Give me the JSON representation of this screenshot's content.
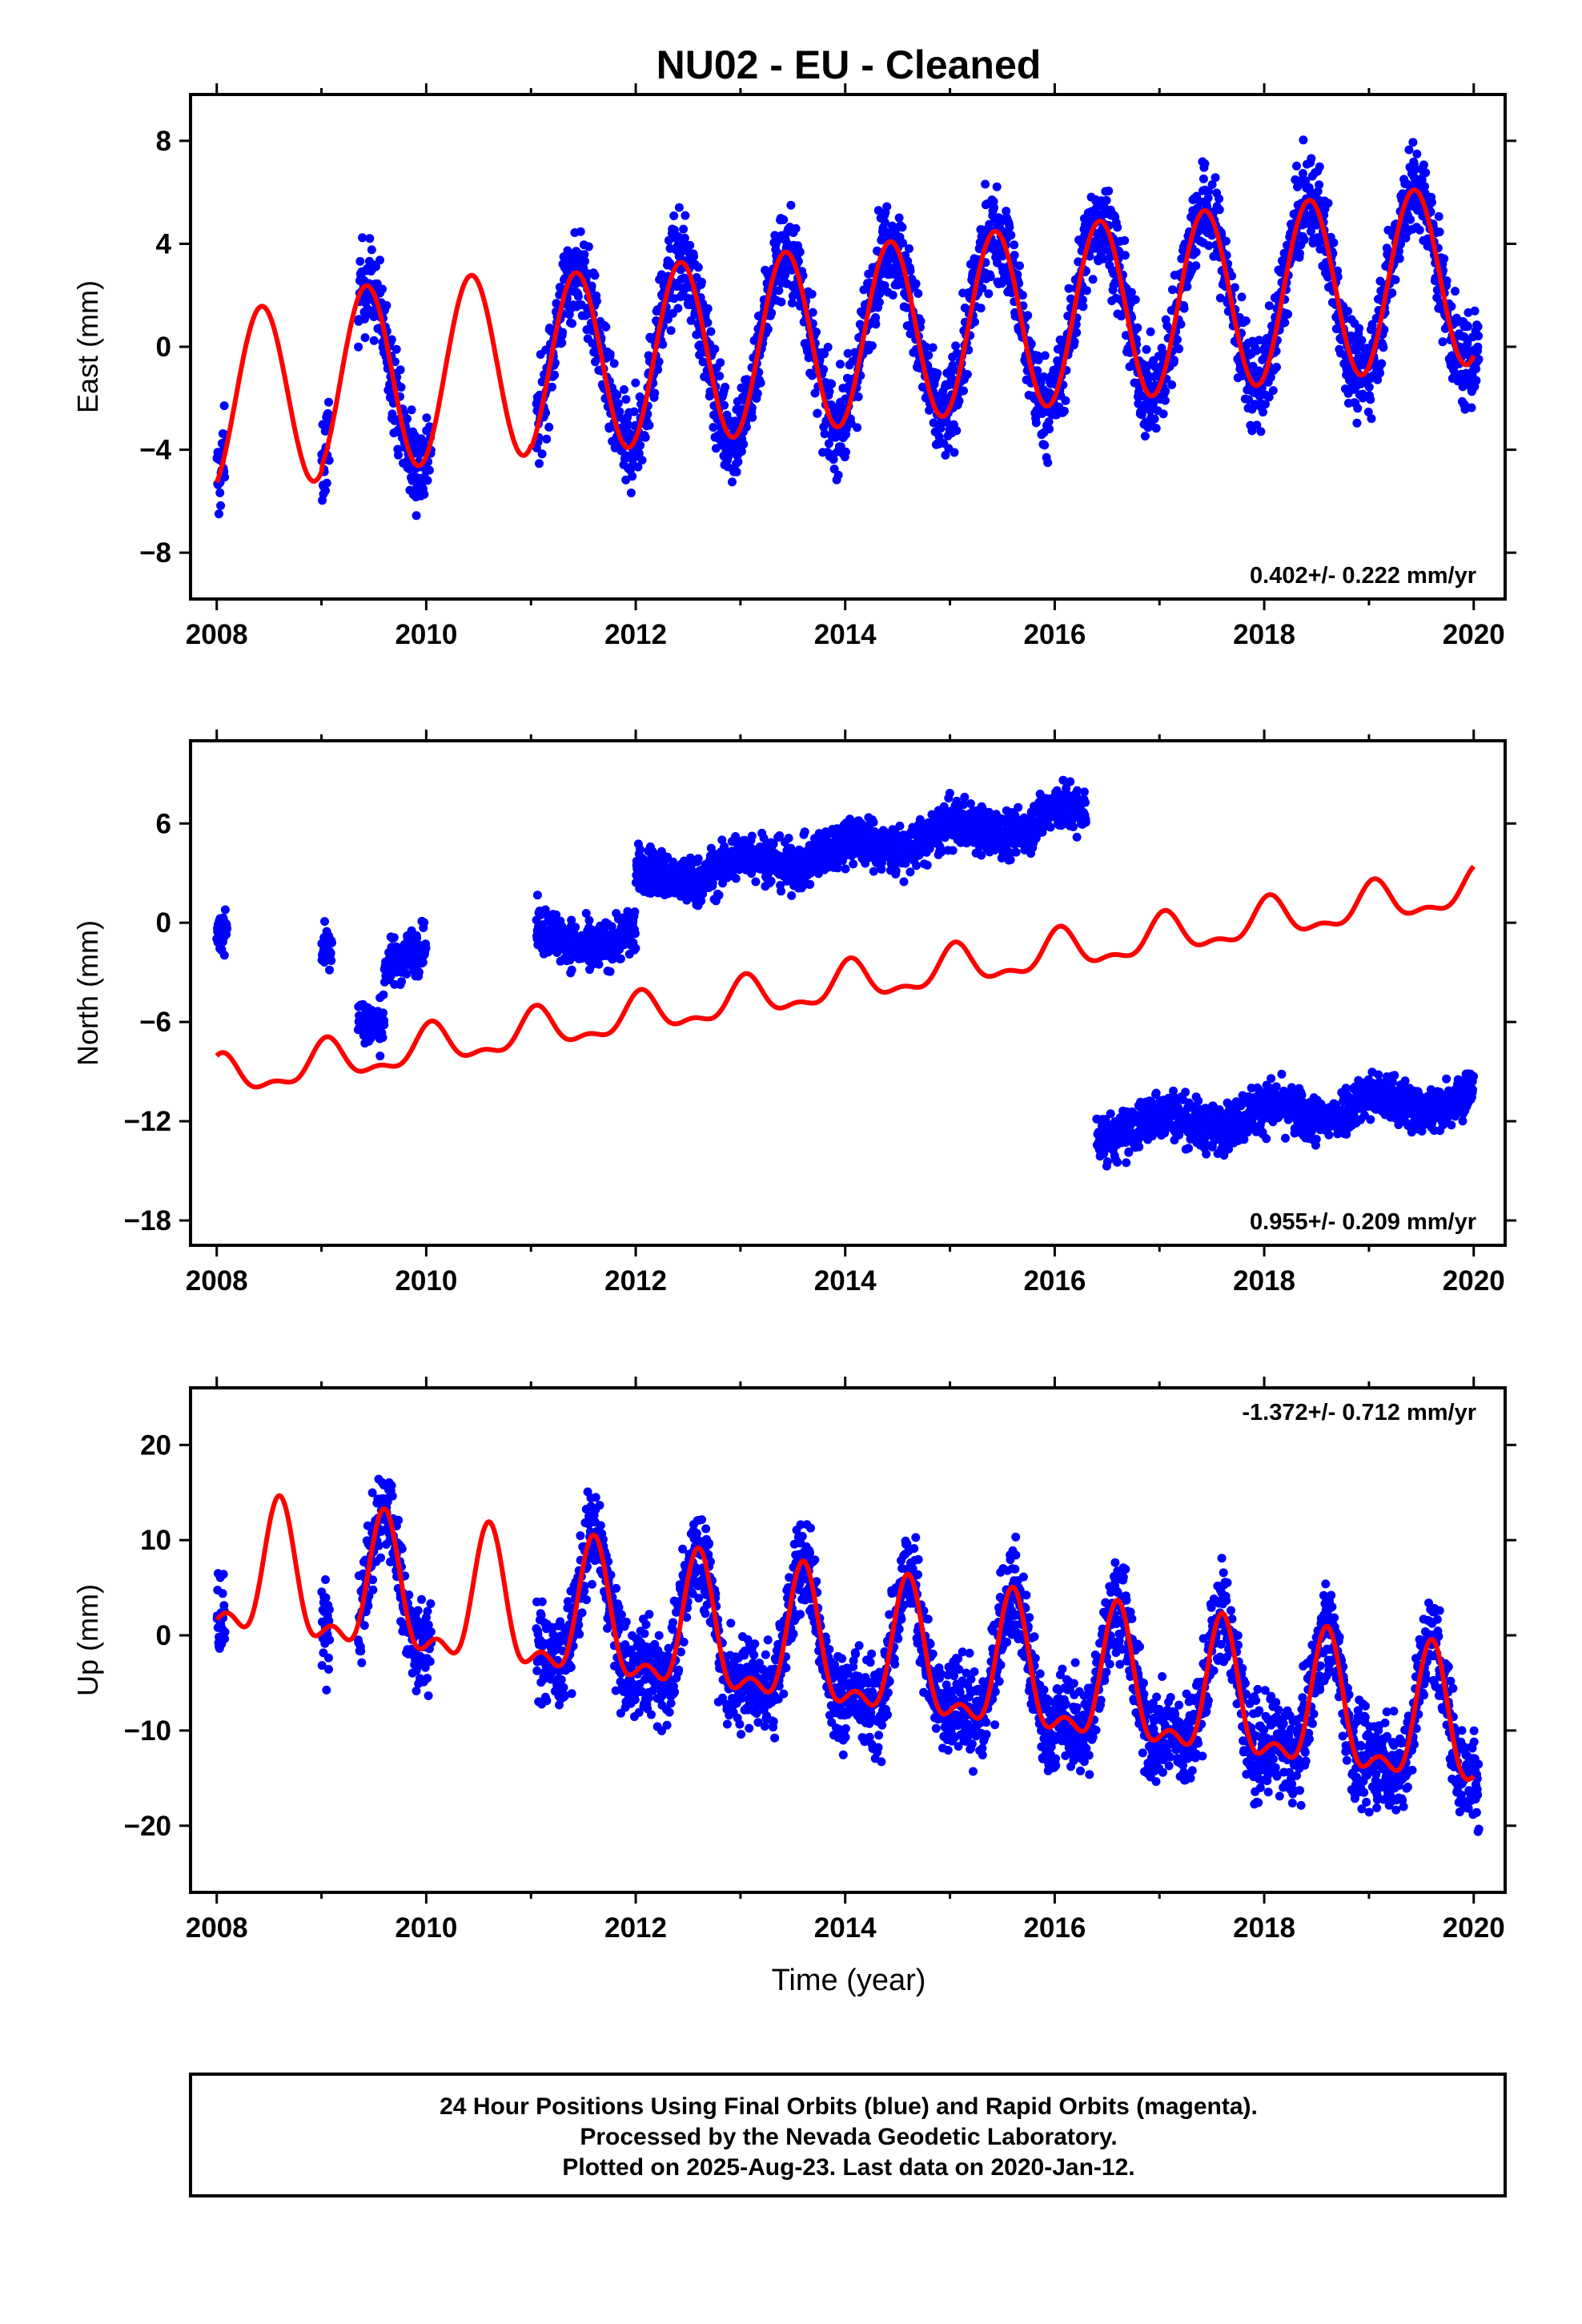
{
  "title": "NU02  - EU - Cleaned",
  "x_axis_label": "Time (year)",
  "colors": {
    "final_orbits": "#0000ff",
    "model_fit": "#ff0000",
    "frame": "#000000"
  },
  "footer": {
    "line1": "24 Hour Positions Using Final Orbits (blue) and Rapid Orbits (magenta).",
    "line2": "Processed by the Nevada Geodetic Laboratory.",
    "line3": "Plotted on 2025-Aug-23. Last data on 2020-Jan-12."
  },
  "chart_data": [
    {
      "type": "scatter",
      "component": "east",
      "ylabel": "East (mm)",
      "xlim": [
        2007.75,
        2020.3
      ],
      "ylim": [
        -9.8,
        9.8
      ],
      "xticks": [
        2008,
        2010,
        2012,
        2014,
        2016,
        2018,
        2020
      ],
      "yticks": [
        8,
        4,
        0,
        -4,
        -8
      ],
      "rate_label": "0.402+/- 0.222 mm/yr",
      "rate_position": "bottom-right",
      "data_segments": [
        [
          2008.0,
          2008.08
        ],
        [
          2009.0,
          2009.08
        ],
        [
          2009.35,
          2010.05
        ],
        [
          2011.05,
          2020.05
        ]
      ],
      "model": {
        "start": 2008.0,
        "end": 2020.0,
        "rate_mm_per_yr": 0.402,
        "segments": [
          {
            "from": 2008.0,
            "to": 2009.0,
            "offset": -2.1,
            "annual_amp": 3.5,
            "phase": 2008.43
          },
          {
            "from": 2009.0,
            "to": 2011.0,
            "offset": -1.8,
            "annual_amp": 3.6,
            "phase": 2009.43
          },
          {
            "from": 2011.0,
            "to": 2020.0,
            "offset": -2.0,
            "annual_amp": 3.5,
            "phase": 2011.43
          }
        ]
      },
      "scatter_noise_sd": 1.6
    },
    {
      "type": "scatter",
      "component": "north",
      "ylabel": "North (mm)",
      "xlim": [
        2007.75,
        2020.3
      ],
      "ylim": [
        -19.5,
        11
      ],
      "xticks": [
        2008,
        2010,
        2012,
        2014,
        2016,
        2018,
        2020
      ],
      "yticks": [
        6,
        0,
        -6,
        -12,
        -18
      ],
      "rate_label": "0.955+/- 0.209 mm/yr",
      "rate_position": "bottom-right",
      "data_segments": [
        {
          "from": 2008.0,
          "to": 2008.1,
          "level": -1.2
        },
        {
          "from": 2009.0,
          "to": 2009.1,
          "level": -2.0
        },
        {
          "from": 2009.35,
          "to": 2009.6,
          "level": -5.5
        },
        {
          "from": 2009.6,
          "to": 2010.0,
          "level": -2.0
        },
        {
          "from": 2011.05,
          "to": 2012.0,
          "level": -1.0
        },
        {
          "from": 2012.0,
          "to": 2016.3,
          "level": 2.5,
          "trend": 0.95
        },
        {
          "from": 2016.4,
          "to": 2020.0,
          "level": -12.5,
          "trend": 0.55
        }
      ],
      "model": {
        "start": 2008.0,
        "end": 2020.0,
        "rate_mm_per_yr": 0.955,
        "segments": [
          {
            "from": 2008.0,
            "to": 2020.0,
            "offset": -9.5,
            "annual_amp": 1.1,
            "semi_amp": 0.5,
            "phase": 2009.05
          }
        ]
      },
      "scatter_noise_sd": 1.2
    },
    {
      "type": "scatter",
      "component": "up",
      "ylabel": "Up (mm)",
      "xlim": [
        2007.75,
        2020.3
      ],
      "ylim": [
        -27,
        26
      ],
      "xticks": [
        2008,
        2010,
        2012,
        2014,
        2016,
        2018,
        2020
      ],
      "yticks": [
        20,
        10,
        0,
        -10,
        -20
      ],
      "rate_label": "-1.372+/- 0.712 mm/yr",
      "rate_position": "top-right",
      "data_segments": [
        [
          2008.0,
          2008.08
        ],
        [
          2009.0,
          2009.08
        ],
        [
          2009.35,
          2010.05
        ],
        [
          2011.05,
          2020.05
        ]
      ],
      "model": {
        "start": 2008.0,
        "end": 2020.0,
        "rate_mm_per_yr": -1.372,
        "segments": [
          {
            "from": 2008.0,
            "to": 2020.0,
            "offset": 6.0,
            "annual_amp": 6.5,
            "semi_amp": 3.0,
            "phase": 2008.6
          }
        ]
      },
      "scatter_noise_sd": 4.5
    }
  ]
}
